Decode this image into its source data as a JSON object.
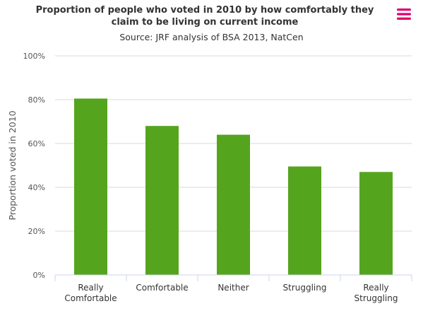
{
  "chart_data": {
    "type": "bar",
    "title": "Proportion of people who voted in 2010 by how comfortably they claim to be living on current income",
    "subtitle": "Source: JRF analysis of BSA 2013, NatCen",
    "xlabel": "",
    "ylabel": "Proportion voted in 2010",
    "categories": [
      "Really Comfortable",
      "Comfortable",
      "Neither",
      "Struggling",
      "Really Struggling"
    ],
    "category_lines": [
      [
        "Really",
        "Comfortable"
      ],
      [
        "Comfortable"
      ],
      [
        "Neither"
      ],
      [
        "Struggling"
      ],
      [
        "Really",
        "Struggling"
      ]
    ],
    "values": [
      80.5,
      68,
      64,
      49.5,
      47
    ],
    "ylim": [
      0,
      100
    ],
    "yticks": [
      0,
      20,
      40,
      60,
      80,
      100
    ],
    "ytick_labels": [
      "0%",
      "20%",
      "40%",
      "60%",
      "80%",
      "100%"
    ],
    "grid": true,
    "legend": "none",
    "bar_color": "#55a41e"
  },
  "colors": {
    "menu_icon": "#e0006e",
    "grid": "#d8d8d8",
    "axis": "#ccd6eb",
    "text": "#333333",
    "tick_text": "#555555"
  },
  "menu": {
    "icon": "hamburger-menu-icon"
  }
}
